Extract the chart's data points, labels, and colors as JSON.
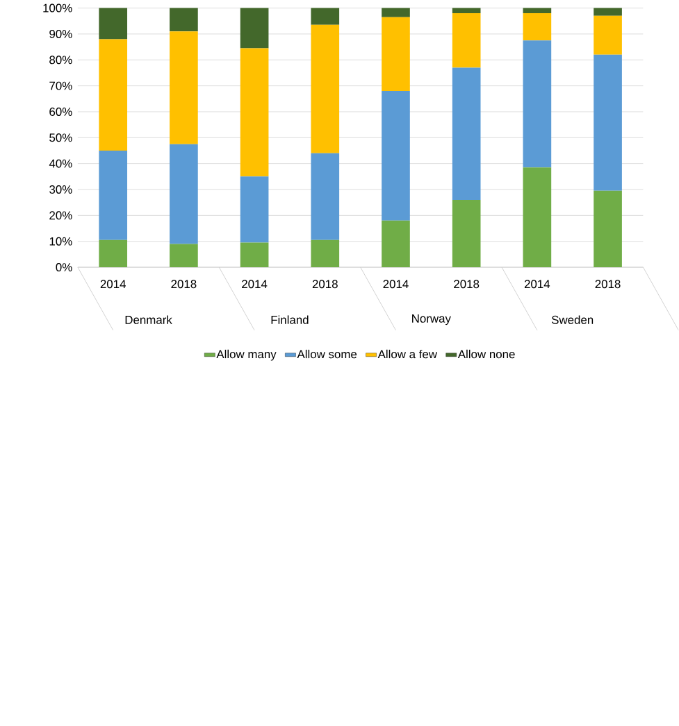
{
  "chart_data": {
    "type": "bar",
    "stacked": true,
    "categories": [
      "2014",
      "2018",
      "2014",
      "2018",
      "2014",
      "2018",
      "2014",
      "2018"
    ],
    "annotations": [
      "Denmark",
      "Finland",
      "Norway",
      "Sweden"
    ],
    "series": [
      {
        "name": "Allow many",
        "color": "#70ad47",
        "values": [
          10.5,
          9,
          9.5,
          10.5,
          18,
          26,
          38.5,
          29.5
        ]
      },
      {
        "name": "Allow some",
        "color": "#5b9bd5",
        "values": [
          34.5,
          38.5,
          25.5,
          33.5,
          50,
          51,
          49,
          52.5
        ]
      },
      {
        "name": "Allow a few",
        "color": "#ffc000",
        "values": [
          43,
          43.5,
          49.5,
          49.5,
          28.5,
          21,
          10.5,
          15
        ]
      },
      {
        "name": "Allow none",
        "color": "#43682b",
        "values": [
          12,
          9,
          15.5,
          6.5,
          3.5,
          2,
          2,
          3
        ]
      }
    ],
    "ylim": [
      0,
      100
    ],
    "yticks": [
      {
        "value": 0,
        "label": "0%"
      },
      {
        "value": 10,
        "label": "10%"
      },
      {
        "value": 20,
        "label": "20%"
      },
      {
        "value": 30,
        "label": "30%"
      },
      {
        "value": 40,
        "label": "40%"
      },
      {
        "value": 50,
        "label": "50%"
      },
      {
        "value": 60,
        "label": "60%"
      },
      {
        "value": 70,
        "label": "70%"
      },
      {
        "value": 80,
        "label": "80%"
      },
      {
        "value": 90,
        "label": "90%"
      },
      {
        "value": 100,
        "label": "100%"
      }
    ],
    "grid": "y",
    "legend": "bottom"
  }
}
